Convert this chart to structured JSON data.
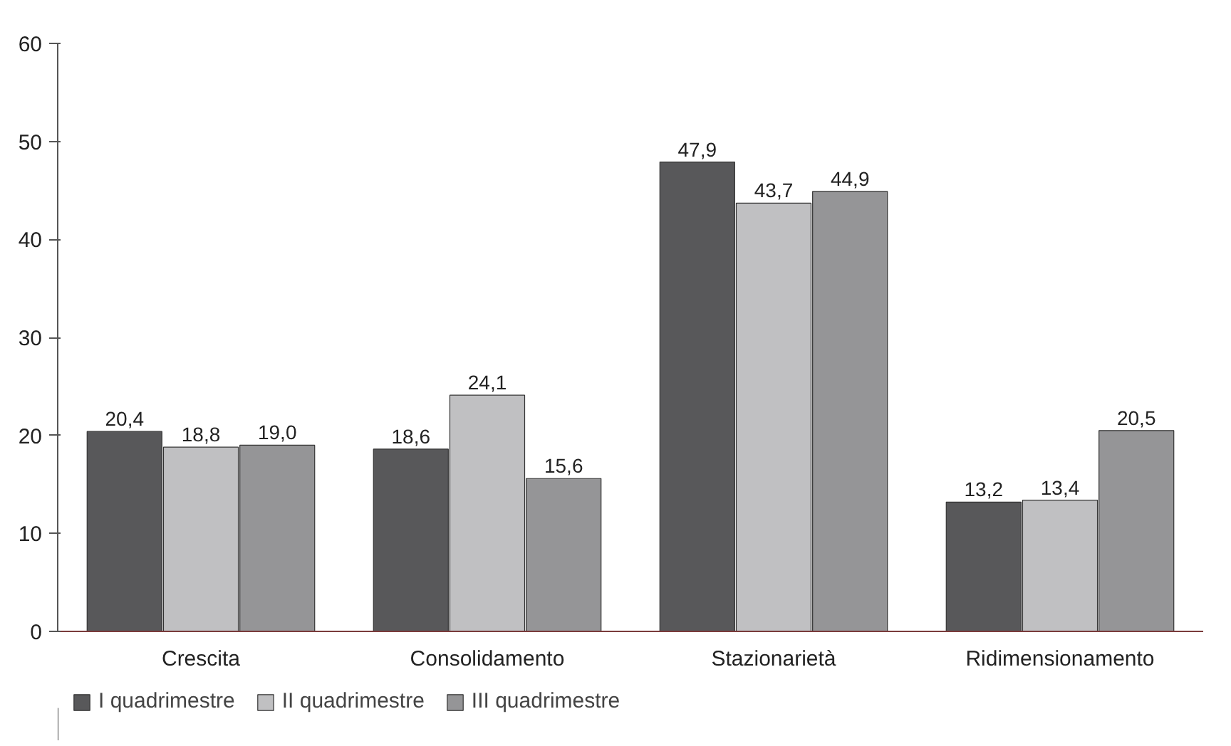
{
  "chart_data": {
    "type": "bar",
    "categories": [
      "Crescita",
      "Consolidamento",
      "Stazionarietà",
      "Ridimensionamento"
    ],
    "series": [
      {
        "name": "I quadrimestre",
        "color": "#58585a",
        "values": [
          20.4,
          18.6,
          47.9,
          13.2
        ],
        "value_labels": [
          "20,4",
          "18,6",
          "47,9",
          "13,2"
        ]
      },
      {
        "name": "II quadrimestre",
        "color": "#c0c0c2",
        "values": [
          18.8,
          24.1,
          43.7,
          13.4
        ],
        "value_labels": [
          "18,8",
          "24,1",
          "43,7",
          "13,4"
        ]
      },
      {
        "name": "III quadrimestre",
        "color": "#959597",
        "values": [
          19.0,
          15.6,
          44.9,
          20.5
        ],
        "value_labels": [
          "19,0",
          "15,6",
          "44,9",
          "20,5"
        ]
      }
    ],
    "ylim": [
      0,
      60
    ],
    "yticks": [
      0,
      10,
      20,
      30,
      40,
      50,
      60
    ],
    "grid": false,
    "legend": "bottom"
  }
}
